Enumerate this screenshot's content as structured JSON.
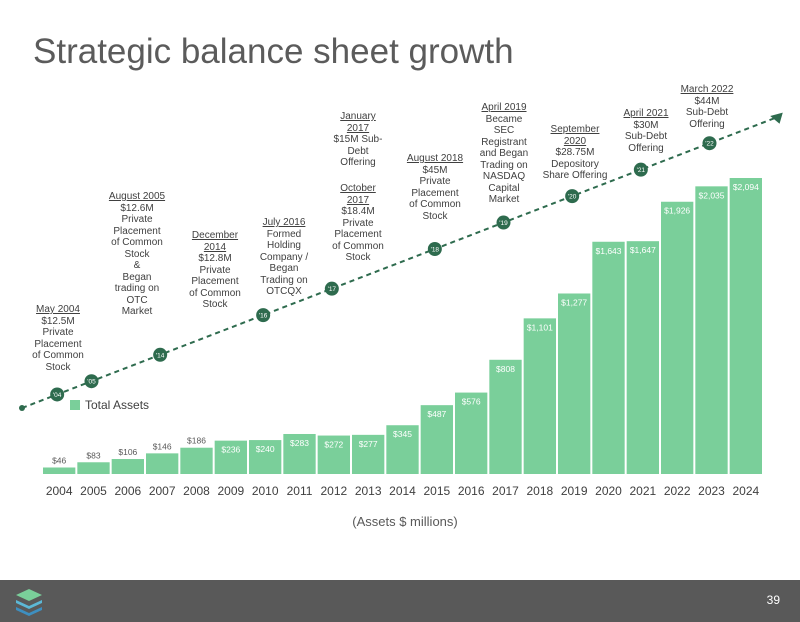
{
  "title": "Strategic balance sheet growth",
  "unit_label": "(Assets $ millions)",
  "page_number": "39",
  "legend": "Total Assets",
  "colors": {
    "bar": "#7acf9a",
    "marker": "#2e6b4e",
    "line": "#2e6b4e",
    "footer": "#595959"
  },
  "chart_data": {
    "type": "bar",
    "categories": [
      "2004",
      "2005",
      "2006",
      "2007",
      "2008",
      "2009",
      "2010",
      "2011",
      "2012",
      "2013",
      "2014",
      "2015",
      "2016",
      "2017",
      "2018",
      "2019",
      "2020",
      "2021",
      "2022",
      "2023",
      "2024"
    ],
    "series": [
      {
        "name": "Total Assets",
        "values": [
          46,
          83,
          106,
          146,
          186,
          236,
          240,
          283,
          272,
          277,
          345,
          487,
          576,
          808,
          1101,
          1277,
          1643,
          1647,
          1926,
          2035,
          2094
        ]
      }
    ],
    "value_labels": [
      "$46",
      "$83",
      "$106",
      "$146",
      "$186",
      "$236",
      "$240",
      "$283",
      "$272",
      "$277",
      "$345",
      "$487",
      "$576",
      "$808",
      "$1,101",
      "$1,277",
      "$1,643",
      "$1,647",
      "$1,926",
      "$2,035",
      "$2,094"
    ],
    "ylim": [
      0,
      2400
    ],
    "legend_position": "top-left",
    "trend_markers": [
      "'04",
      "'05",
      "'14",
      "'16",
      "'17",
      "'18",
      "'19",
      "'20",
      "'21",
      "'22"
    ]
  },
  "annotations": [
    {
      "date": "May 2004",
      "lines": [
        "$12.5M",
        "Private",
        "Placement",
        "of Common",
        "Stock"
      ]
    },
    {
      "date": "August 2005",
      "lines": [
        "$12.6M",
        "Private",
        "Placement",
        "of Common",
        "Stock",
        "&",
        "Began",
        "trading on",
        "OTC",
        "Market"
      ]
    },
    {
      "date": "December 2014",
      "lines": [
        "$12.8M",
        "Private",
        "Placement",
        "of Common",
        "Stock"
      ]
    },
    {
      "date": "July 2016",
      "lines": [
        "Formed",
        "Holding",
        "Company /",
        "Began",
        "Trading on",
        "OTCQX"
      ]
    },
    {
      "date": "January 2017",
      "lines": [
        "$15M Sub-",
        "Debt",
        "Offering"
      ]
    },
    {
      "date": "October 2017",
      "lines": [
        "$18.4M",
        "Private",
        "Placement",
        "of Common",
        "Stock"
      ]
    },
    {
      "date": "August 2018",
      "lines": [
        "$45M",
        "Private",
        "Placement",
        "of Common",
        "Stock"
      ]
    },
    {
      "date": "April 2019",
      "lines": [
        "Became",
        "SEC",
        "Registrant",
        "and Began",
        "Trading on",
        "NASDAQ",
        "Capital",
        "Market"
      ]
    },
    {
      "date": "September 2020",
      "lines": [
        "$28.75M",
        "Depository",
        "Share Offering"
      ]
    },
    {
      "date": "April 2021",
      "lines": [
        "$30M",
        "Sub-Debt",
        "Offering"
      ]
    },
    {
      "date": "March 2022",
      "lines": [
        "$44M",
        "Sub-Debt",
        "Offering"
      ]
    }
  ]
}
